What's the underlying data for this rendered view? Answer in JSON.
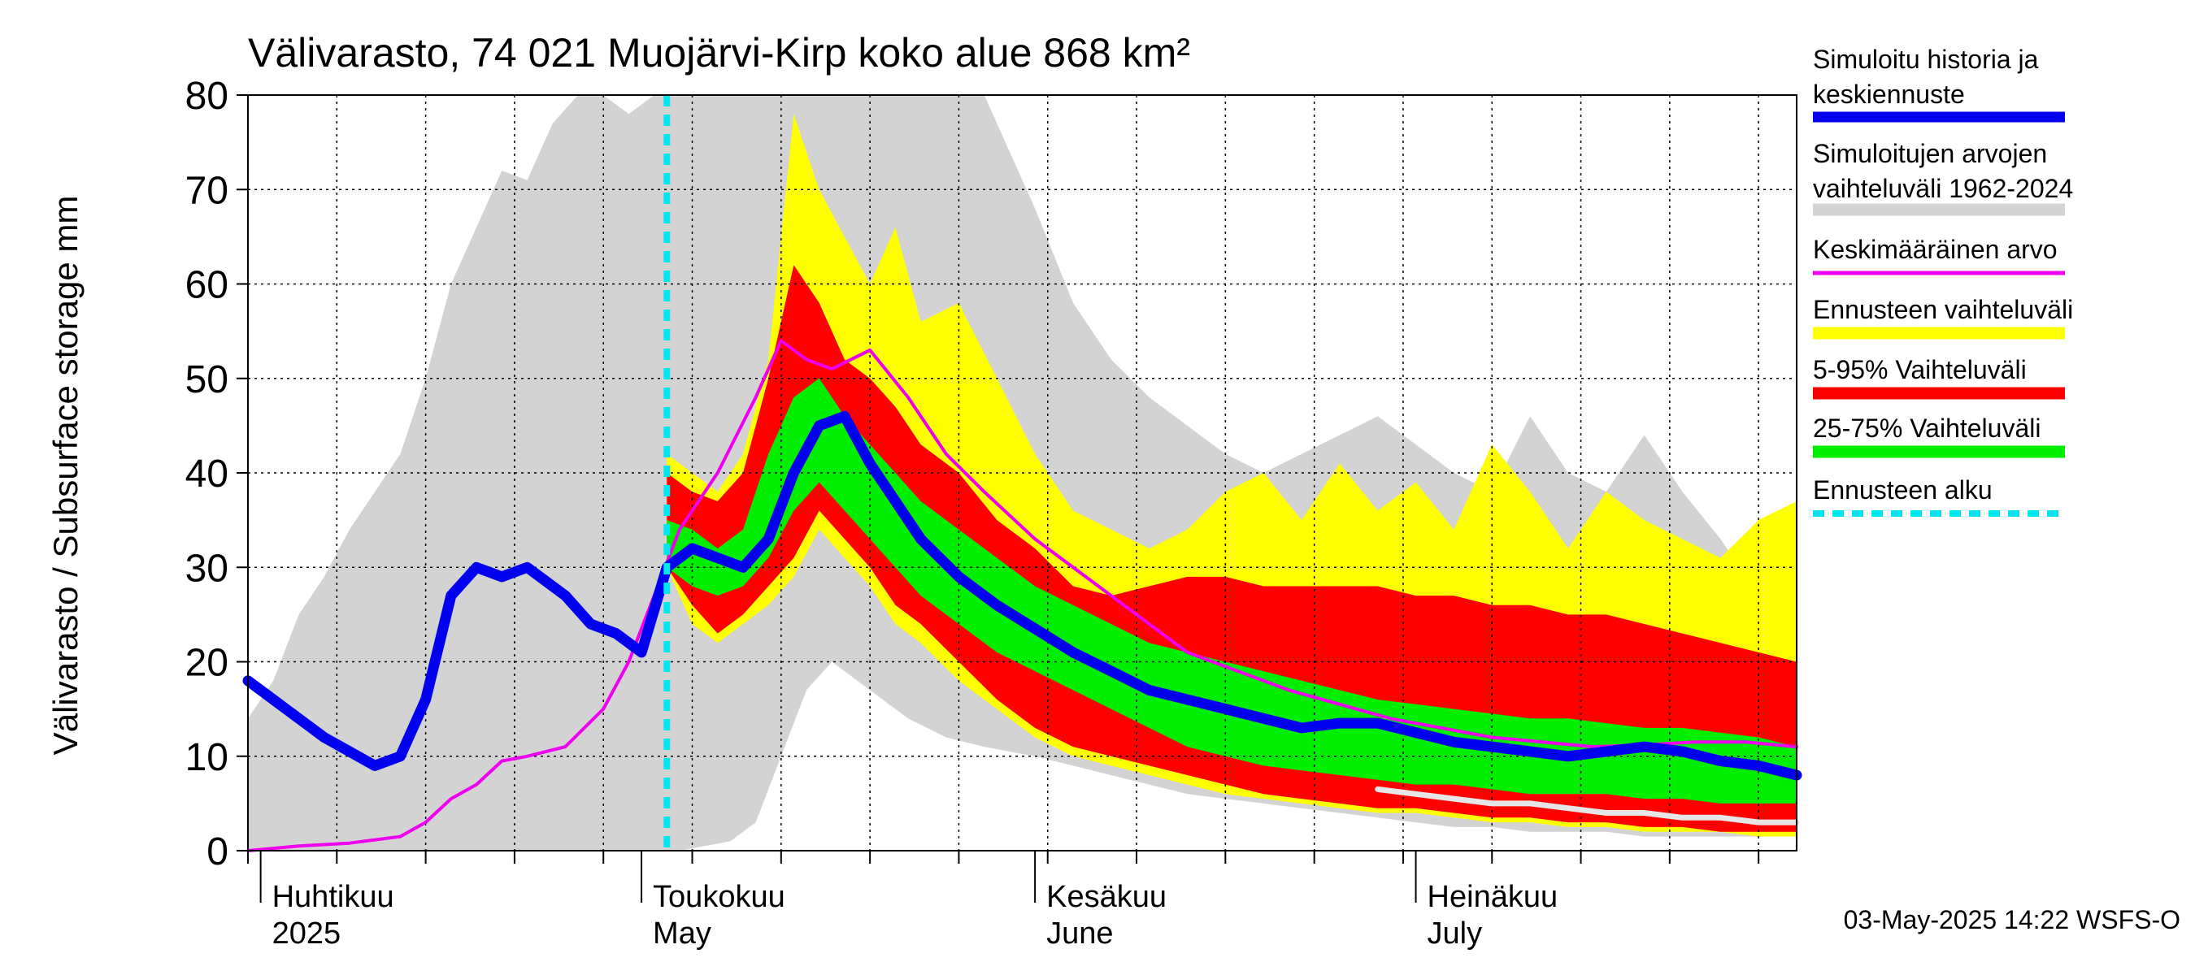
{
  "chart_data": {
    "type": "area",
    "title": "Välivarasto, 74 021 Muojärvi-Kirp koko alue 868 km²",
    "ylabel": "Välivarasto / Subsurface storage  mm",
    "ylim": [
      0,
      80
    ],
    "yticks": [
      0,
      10,
      20,
      30,
      40,
      50,
      60,
      70,
      80
    ],
    "xlim": [
      "2025-03-31",
      "2025-07-31"
    ],
    "grid": true,
    "legend_position": "right",
    "month_labels": [
      {
        "fi": "Huhtikuu",
        "en": "2025",
        "date": "2025-04-01"
      },
      {
        "fi": "Toukokuu",
        "en": "May",
        "date": "2025-05-01"
      },
      {
        "fi": "Kesäkuu",
        "en": "June",
        "date": "2025-06-01"
      },
      {
        "fi": "Heinäkuu",
        "en": "July",
        "date": "2025-07-01"
      }
    ],
    "forecast_start": "2025-05-03",
    "timestamp": "03-May-2025 14:22 WSFS-O",
    "legend": [
      {
        "label": "Simuloitu historia ja keskiennuste",
        "color": "#0000ee",
        "style": "thick-line"
      },
      {
        "label": "Simuloitujen arvojen vaihteluväli 1962-2024",
        "color": "#d3d3d3",
        "style": "band"
      },
      {
        "label": "Keskimääräinen arvo",
        "color": "#ee00ee",
        "style": "line"
      },
      {
        "label": "Ennusteen vaihteluväli",
        "color": "#ffff00",
        "style": "band"
      },
      {
        "label": "5-95% Vaihteluväli",
        "color": "#ff0000",
        "style": "band"
      },
      {
        "label": "25-75% Vaihteluväli",
        "color": "#00ee00",
        "style": "band"
      },
      {
        "label": "Ennusteen alku",
        "color": "#00e5ee",
        "style": "dashed-line"
      }
    ],
    "hist_range": {
      "x": [
        "2025-03-31",
        "2025-04-02",
        "2025-04-04",
        "2025-04-06",
        "2025-04-08",
        "2025-04-10",
        "2025-04-12",
        "2025-04-14",
        "2025-04-16",
        "2025-04-18",
        "2025-04-20",
        "2025-04-22",
        "2025-04-24",
        "2025-04-26",
        "2025-04-28",
        "2025-04-30",
        "2025-05-02",
        "2025-05-04",
        "2025-05-06",
        "2025-05-08",
        "2025-05-10",
        "2025-05-12",
        "2025-05-14",
        "2025-05-16",
        "2025-05-19",
        "2025-05-22",
        "2025-05-25",
        "2025-05-28",
        "2025-06-01",
        "2025-06-04",
        "2025-06-07",
        "2025-06-10",
        "2025-06-13",
        "2025-06-16",
        "2025-06-19",
        "2025-06-22",
        "2025-06-25",
        "2025-06-28",
        "2025-07-01",
        "2025-07-04",
        "2025-07-07",
        "2025-07-10",
        "2025-07-13",
        "2025-07-16",
        "2025-07-19",
        "2025-07-22",
        "2025-07-25",
        "2025-07-28",
        "2025-07-31"
      ],
      "low": [
        0,
        0,
        0,
        0,
        0,
        0,
        0,
        0,
        0,
        0,
        0,
        0,
        0,
        0,
        0,
        0,
        0,
        0,
        0.5,
        1,
        3,
        10,
        17,
        20,
        17,
        14,
        12,
        11,
        10,
        9,
        8,
        7,
        6,
        5.5,
        5,
        4.5,
        4,
        3.5,
        3,
        2.5,
        2.5,
        2,
        2,
        2,
        1.5,
        1.5,
        1.5,
        1.5,
        1.5
      ],
      "high": [
        14,
        18,
        25,
        29,
        34,
        38,
        42,
        50,
        60,
        66,
        72,
        71,
        77,
        80,
        80,
        78,
        80,
        80,
        80,
        80,
        80,
        80,
        80,
        80,
        80,
        80,
        80,
        80,
        68,
        58,
        52,
        48,
        45,
        42,
        40,
        42,
        44,
        46,
        43,
        40,
        38,
        46,
        40,
        38,
        44,
        38,
        33,
        27,
        30
      ]
    },
    "forecast_full": {
      "x": [
        "2025-05-03",
        "2025-05-05",
        "2025-05-07",
        "2025-05-09",
        "2025-05-11",
        "2025-05-13",
        "2025-05-15",
        "2025-05-17",
        "2025-05-19",
        "2025-05-21",
        "2025-05-23",
        "2025-05-26",
        "2025-05-29",
        "2025-06-01",
        "2025-06-04",
        "2025-06-07",
        "2025-06-10",
        "2025-06-13",
        "2025-06-16",
        "2025-06-19",
        "2025-06-22",
        "2025-06-25",
        "2025-06-28",
        "2025-07-01",
        "2025-07-04",
        "2025-07-07",
        "2025-07-10",
        "2025-07-13",
        "2025-07-16",
        "2025-07-19",
        "2025-07-22",
        "2025-07-25",
        "2025-07-28",
        "2025-07-31"
      ],
      "low": [
        30,
        24,
        22,
        24,
        26,
        29,
        34,
        31,
        28,
        24,
        22,
        18,
        15,
        12,
        10,
        9,
        8,
        7,
        6,
        5.5,
        5,
        4.5,
        4,
        4,
        3.5,
        3,
        3,
        2.5,
        2.5,
        2,
        2,
        2,
        1.5,
        1.5
      ],
      "high": [
        42,
        40,
        38,
        42,
        52,
        78,
        70,
        65,
        60,
        66,
        56,
        58,
        50,
        42,
        36,
        34,
        32,
        34,
        38,
        40,
        35,
        41,
        36,
        39,
        34,
        43,
        38,
        32,
        38,
        35,
        33,
        31,
        35,
        37
      ]
    },
    "forecast_p5_95": {
      "x": [
        "2025-05-03",
        "2025-05-05",
        "2025-05-07",
        "2025-05-09",
        "2025-05-11",
        "2025-05-13",
        "2025-05-15",
        "2025-05-17",
        "2025-05-19",
        "2025-05-21",
        "2025-05-23",
        "2025-05-26",
        "2025-05-29",
        "2025-06-01",
        "2025-06-04",
        "2025-06-07",
        "2025-06-10",
        "2025-06-13",
        "2025-06-16",
        "2025-06-19",
        "2025-06-22",
        "2025-06-25",
        "2025-06-28",
        "2025-07-01",
        "2025-07-04",
        "2025-07-07",
        "2025-07-10",
        "2025-07-13",
        "2025-07-16",
        "2025-07-19",
        "2025-07-22",
        "2025-07-25",
        "2025-07-28",
        "2025-07-31"
      ],
      "low": [
        30,
        26,
        23,
        25,
        28,
        31,
        36,
        33,
        30,
        26,
        24,
        20,
        16,
        13,
        11,
        10,
        9,
        8,
        7,
        6,
        5.5,
        5,
        4.5,
        4.5,
        4,
        3.5,
        3.5,
        3,
        3,
        2.5,
        2.5,
        2,
        2,
        2
      ],
      "high": [
        40,
        38,
        37,
        40,
        50,
        62,
        58,
        52,
        50,
        47,
        43,
        40,
        35,
        32,
        28,
        27,
        28,
        29,
        29,
        28,
        28,
        28,
        28,
        27,
        27,
        26,
        26,
        25,
        25,
        24,
        23,
        22,
        21,
        20
      ]
    },
    "forecast_p25_75": {
      "x": [
        "2025-05-03",
        "2025-05-05",
        "2025-05-07",
        "2025-05-09",
        "2025-05-11",
        "2025-05-13",
        "2025-05-15",
        "2025-05-17",
        "2025-05-19",
        "2025-05-21",
        "2025-05-23",
        "2025-05-26",
        "2025-05-29",
        "2025-06-01",
        "2025-06-04",
        "2025-06-07",
        "2025-06-10",
        "2025-06-13",
        "2025-06-16",
        "2025-06-19",
        "2025-06-22",
        "2025-06-25",
        "2025-06-28",
        "2025-07-01",
        "2025-07-04",
        "2025-07-07",
        "2025-07-10",
        "2025-07-13",
        "2025-07-16",
        "2025-07-19",
        "2025-07-22",
        "2025-07-25",
        "2025-07-28",
        "2025-07-31"
      ],
      "low": [
        30,
        28,
        27,
        28,
        31,
        36,
        39,
        36,
        33,
        30,
        27,
        24,
        21,
        19,
        17,
        15,
        13,
        11,
        10,
        9,
        8.5,
        8,
        7.5,
        7,
        7,
        6.5,
        6,
        6,
        6,
        5.5,
        5.5,
        5,
        5,
        5
      ],
      "high": [
        35,
        34,
        32,
        34,
        42,
        48,
        50,
        46,
        43,
        40,
        37,
        34,
        31,
        28,
        26,
        24,
        22,
        21,
        20,
        19,
        18,
        17,
        16,
        15.5,
        15,
        14.5,
        14,
        14,
        13.5,
        13,
        13,
        12.5,
        12,
        11
      ]
    },
    "series": [
      {
        "name": "Simuloitu historia ja keskiennuste",
        "x": [
          "2025-03-31",
          "2025-04-02",
          "2025-04-04",
          "2025-04-06",
          "2025-04-08",
          "2025-04-10",
          "2025-04-12",
          "2025-04-14",
          "2025-04-16",
          "2025-04-18",
          "2025-04-20",
          "2025-04-22",
          "2025-04-23",
          "2025-04-25",
          "2025-04-27",
          "2025-04-29",
          "2025-05-01",
          "2025-05-03",
          "2025-05-05",
          "2025-05-07",
          "2025-05-09",
          "2025-05-11",
          "2025-05-13",
          "2025-05-15",
          "2025-05-17",
          "2025-05-19",
          "2025-05-21",
          "2025-05-23",
          "2025-05-26",
          "2025-05-29",
          "2025-06-01",
          "2025-06-04",
          "2025-06-07",
          "2025-06-10",
          "2025-06-13",
          "2025-06-16",
          "2025-06-19",
          "2025-06-22",
          "2025-06-25",
          "2025-06-28",
          "2025-07-01",
          "2025-07-04",
          "2025-07-07",
          "2025-07-10",
          "2025-07-13",
          "2025-07-16",
          "2025-07-19",
          "2025-07-22",
          "2025-07-25",
          "2025-07-28",
          "2025-07-31"
        ],
        "values": [
          18,
          16,
          14,
          12,
          10.5,
          9,
          10,
          16,
          27,
          30,
          29,
          30,
          29,
          27,
          24,
          23,
          21,
          30,
          32,
          31,
          30,
          33,
          40,
          45,
          46,
          41,
          37,
          33,
          29,
          26,
          23.5,
          21,
          19,
          17,
          16,
          15,
          14,
          13,
          13.5,
          13.5,
          12.5,
          11.5,
          11,
          10.5,
          10,
          10.5,
          11,
          10.5,
          9.5,
          9,
          8
        ]
      },
      {
        "name": "Keskimääräinen arvo",
        "x": [
          "2025-03-31",
          "2025-04-04",
          "2025-04-08",
          "2025-04-12",
          "2025-04-14",
          "2025-04-16",
          "2025-04-18",
          "2025-04-20",
          "2025-04-22",
          "2025-04-25",
          "2025-04-28",
          "2025-04-30",
          "2025-05-02",
          "2025-05-04",
          "2025-05-07",
          "2025-05-10",
          "2025-05-12",
          "2025-05-14",
          "2025-05-16",
          "2025-05-19",
          "2025-05-22",
          "2025-05-25",
          "2025-05-28",
          "2025-06-01",
          "2025-06-05",
          "2025-06-09",
          "2025-06-13",
          "2025-06-17",
          "2025-06-21",
          "2025-06-25",
          "2025-06-29",
          "2025-07-03",
          "2025-07-07",
          "2025-07-11",
          "2025-07-15",
          "2025-07-19",
          "2025-07-23",
          "2025-07-27",
          "2025-07-31"
        ],
        "values": [
          0,
          0.5,
          0.8,
          1.5,
          3,
          5.5,
          7,
          9.5,
          10,
          11,
          15,
          20,
          27,
          34,
          40,
          48,
          54,
          52,
          51,
          53,
          48,
          42,
          38,
          33,
          29,
          25,
          21,
          19,
          17,
          15.5,
          14,
          13,
          12,
          11.5,
          11,
          11.2,
          11.5,
          11.5,
          11
        ]
      },
      {
        "name": "Ennusteen vaihteluväli (min)",
        "x": [
          "2025-06-28",
          "2025-07-01",
          "2025-07-04",
          "2025-07-07",
          "2025-07-10",
          "2025-07-13",
          "2025-07-16",
          "2025-07-19",
          "2025-07-22",
          "2025-07-25",
          "2025-07-28",
          "2025-07-31"
        ],
        "values": [
          6.5,
          6,
          5.5,
          5,
          5,
          4.5,
          4,
          4,
          3.5,
          3.5,
          3,
          3
        ]
      }
    ]
  }
}
